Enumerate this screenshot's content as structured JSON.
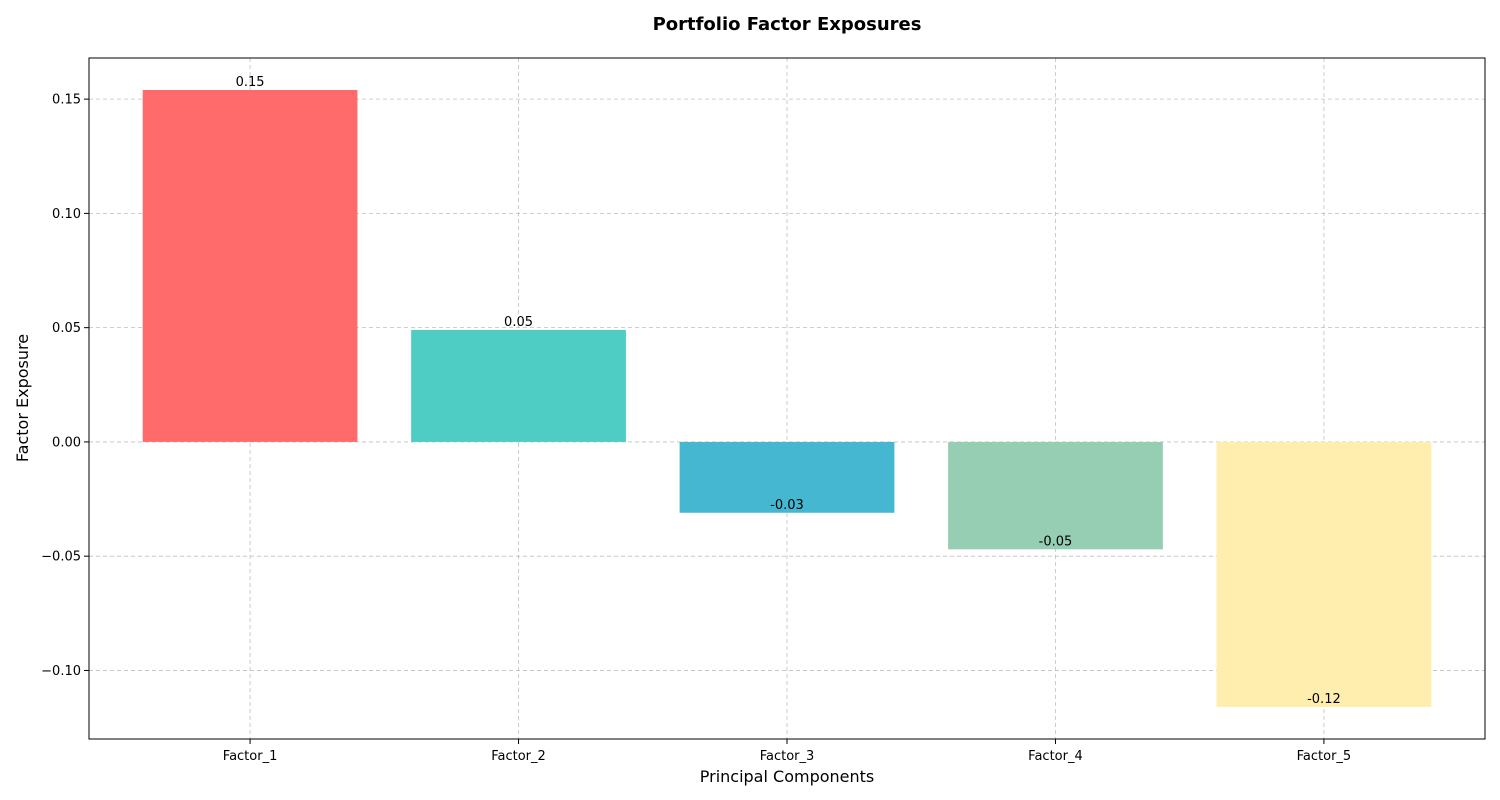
{
  "chart_data": {
    "type": "bar",
    "title": "Portfolio Factor Exposures",
    "xlabel": "Principal Components",
    "ylabel": "Factor Exposure",
    "categories": [
      "Factor_1",
      "Factor_2",
      "Factor_3",
      "Factor_4",
      "Factor_5"
    ],
    "values": [
      0.154,
      0.049,
      -0.031,
      -0.047,
      -0.116
    ],
    "value_labels": [
      "0.15",
      "0.05",
      "-0.03",
      "-0.05",
      "-0.12"
    ],
    "colors": [
      "#ff6b6b",
      "#4ecdc4",
      "#45b7d1",
      "#96ceb4",
      "#ffeead"
    ],
    "ylim": [
      -0.13,
      0.168
    ],
    "yticks": [
      -0.1,
      -0.05,
      0.0,
      0.05,
      0.1,
      0.15
    ],
    "ytick_labels": [
      "−0.10",
      "−0.05",
      "0.00",
      "0.05",
      "0.10",
      "0.15"
    ],
    "grid": true,
    "legend": "none"
  }
}
